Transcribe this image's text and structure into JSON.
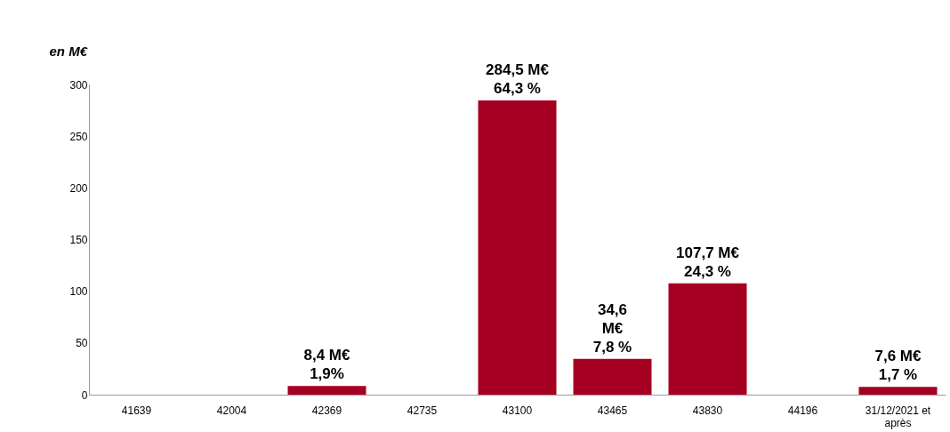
{
  "chart_data": {
    "type": "bar",
    "ylabel": "en M€",
    "categories": [
      "41639",
      "42004",
      "42369",
      "42735",
      "43100",
      "43465",
      "43830",
      "44196",
      "31/12/2021 et après"
    ],
    "values": [
      null,
      null,
      8.4,
      null,
      284.5,
      34.6,
      107.7,
      null,
      7.6
    ],
    "value_labels": [
      null,
      null,
      "8,4 M€\n1,9%",
      null,
      "284,5 M€\n64,3 %",
      "34,6\nM€\n7,8 %",
      "107,7 M€\n24,3 %",
      null,
      "7,6 M€\n1,7 %"
    ],
    "color": "#a50021",
    "ylim": [
      0,
      300
    ],
    "yticks": [
      0,
      50,
      100,
      150,
      200,
      250,
      300
    ],
    "grid": false
  }
}
